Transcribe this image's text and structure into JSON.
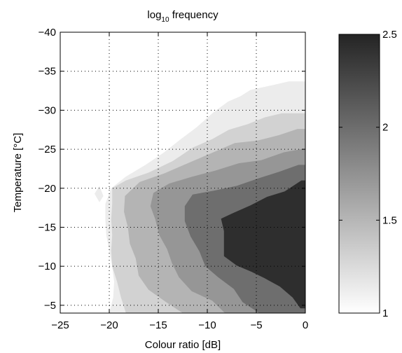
{
  "chart_data": {
    "type": "heatmap",
    "title_main": "log",
    "title_sub": "10",
    "title_rest": " frequency",
    "xlabel": "Colour ratio [dB]",
    "ylabel": "Temperature [°C]",
    "xlim": [
      -25,
      0
    ],
    "ylim": [
      -4,
      -40
    ],
    "x_ticks": [
      -25,
      -20,
      -15,
      -10,
      -5,
      0
    ],
    "x_tick_labels": [
      "−25",
      "−20",
      "−15",
      "−10",
      "−5",
      "0"
    ],
    "y_ticks": [
      -40,
      -35,
      -30,
      -25,
      -20,
      -15,
      -10,
      -5
    ],
    "y_tick_labels": [
      "−40",
      "−35",
      "−30",
      "−25",
      "−20",
      "−15",
      "−10",
      "−5"
    ],
    "grid": "dotted",
    "colorbar": {
      "range": [
        1,
        2.5
      ],
      "ticks": [
        1,
        1.5,
        2,
        2.5
      ],
      "tick_labels": [
        "1",
        "1.5",
        "2",
        "2.5"
      ],
      "colormap": "white-to-black"
    },
    "contour_levels": [
      1.25,
      1.5,
      1.75,
      2.0,
      2.25
    ],
    "contour_colors": [
      "#ececec",
      "#d2d2d2",
      "#b4b4b4",
      "#969696",
      "#6e6e6e",
      "#2e2e2e"
    ],
    "regions": [
      {
        "level": 1.25,
        "points": [
          [
            -20,
            -4
          ],
          [
            -19.6,
            -6
          ],
          [
            -19.5,
            -8
          ],
          [
            -19.7,
            -10
          ],
          [
            -20,
            -12
          ],
          [
            -20.3,
            -14
          ],
          [
            -20.4,
            -16
          ],
          [
            -20.4,
            -18
          ],
          [
            -19.8,
            -20
          ],
          [
            -18.3,
            -21.5
          ],
          [
            -16.3,
            -23
          ],
          [
            -14.4,
            -24.6
          ],
          [
            -12.7,
            -26.3
          ],
          [
            -11.1,
            -27.8
          ],
          [
            -9.4,
            -29.7
          ],
          [
            -7.9,
            -31.1
          ],
          [
            -6.6,
            -31.8
          ],
          [
            -5.6,
            -32.6
          ],
          [
            -3.4,
            -33.2
          ],
          [
            -1.7,
            -33.7
          ],
          [
            0,
            -33.7
          ],
          [
            0,
            -4
          ]
        ]
      },
      {
        "level": 1.5,
        "points": [
          [
            -18.3,
            -4
          ],
          [
            -18.8,
            -6
          ],
          [
            -19.2,
            -8
          ],
          [
            -19.7,
            -10
          ],
          [
            -19.8,
            -12
          ],
          [
            -19.7,
            -14
          ],
          [
            -19.8,
            -16
          ],
          [
            -19.7,
            -18
          ],
          [
            -19.7,
            -20
          ],
          [
            -18.3,
            -21
          ],
          [
            -16,
            -22
          ],
          [
            -13.5,
            -23.5
          ],
          [
            -11.5,
            -25.2
          ],
          [
            -9.5,
            -26.3
          ],
          [
            -7.8,
            -27.5
          ],
          [
            -5.9,
            -28.2
          ],
          [
            -4.1,
            -29.1
          ],
          [
            -2.4,
            -29.6
          ],
          [
            0,
            -29.6
          ],
          [
            0,
            -4
          ]
        ]
      },
      {
        "level": 1.75,
        "points": [
          [
            -12.5,
            -4
          ],
          [
            -14.2,
            -5.4
          ],
          [
            -16,
            -7
          ],
          [
            -17,
            -8.8
          ],
          [
            -17.3,
            -11
          ],
          [
            -17.9,
            -12.9
          ],
          [
            -18.1,
            -15
          ],
          [
            -18.5,
            -17
          ],
          [
            -18.4,
            -19
          ],
          [
            -16.9,
            -20.8
          ],
          [
            -14.4,
            -21.9
          ],
          [
            -12,
            -23.2
          ],
          [
            -9.6,
            -24.5
          ],
          [
            -7.2,
            -25.8
          ],
          [
            -4.9,
            -26.1
          ],
          [
            -2.7,
            -26.8
          ],
          [
            -0.8,
            -27.6
          ],
          [
            0,
            -27.6
          ],
          [
            0,
            -4
          ]
        ]
      },
      {
        "level": 2.0,
        "points": [
          [
            -8.2,
            -4
          ],
          [
            -9.5,
            -5.6
          ],
          [
            -11.6,
            -6.8
          ],
          [
            -12.9,
            -8.6
          ],
          [
            -13.6,
            -10.4
          ],
          [
            -14.1,
            -12.2
          ],
          [
            -14.9,
            -14
          ],
          [
            -15.3,
            -16
          ],
          [
            -15.8,
            -17.7
          ],
          [
            -15.5,
            -19.4
          ],
          [
            -13.9,
            -20.6
          ],
          [
            -11.5,
            -21.5
          ],
          [
            -9.1,
            -22.3
          ],
          [
            -6.8,
            -23.2
          ],
          [
            -4.5,
            -23.6
          ],
          [
            -2.2,
            -24.6
          ],
          [
            -0.5,
            -25
          ],
          [
            0,
            -25
          ],
          [
            0,
            -4
          ]
        ]
      },
      {
        "level": 2.25,
        "points": [
          [
            -4.7,
            -4
          ],
          [
            -6.4,
            -5.4
          ],
          [
            -7.3,
            -7.1
          ],
          [
            -8.9,
            -8.6
          ],
          [
            -10.2,
            -10
          ],
          [
            -10.8,
            -11.9
          ],
          [
            -11.7,
            -13.8
          ],
          [
            -12.3,
            -15.8
          ],
          [
            -12.3,
            -17.7
          ],
          [
            -11.5,
            -19.2
          ],
          [
            -9.3,
            -19.7
          ],
          [
            -7,
            -20.3
          ],
          [
            -4.7,
            -21.3
          ],
          [
            -2.7,
            -22.1
          ],
          [
            -0.7,
            -23
          ],
          [
            0,
            -23
          ],
          [
            0,
            -4
          ]
        ]
      },
      {
        "level": 2.5,
        "points": [
          [
            -0.5,
            -4.6
          ],
          [
            -1.3,
            -6
          ],
          [
            -2.6,
            -7.4
          ],
          [
            -4.2,
            -8.5
          ],
          [
            -5.5,
            -9.3
          ],
          [
            -7,
            -10.1
          ],
          [
            -8.3,
            -11.3
          ],
          [
            -8.3,
            -13
          ],
          [
            -8.3,
            -14.5
          ],
          [
            -8.6,
            -16.1
          ],
          [
            -7.4,
            -16.8
          ],
          [
            -5.6,
            -17.8
          ],
          [
            -3.9,
            -18.9
          ],
          [
            -2.1,
            -19.6
          ],
          [
            -0.4,
            -21
          ],
          [
            0,
            -21
          ],
          [
            0,
            -4.6
          ]
        ]
      },
      {
        "level": 1.25,
        "points": [
          [
            -21.5,
            -19.3
          ],
          [
            -21,
            -18.2
          ],
          [
            -20.6,
            -19
          ],
          [
            -21,
            -20.3
          ]
        ]
      }
    ]
  }
}
